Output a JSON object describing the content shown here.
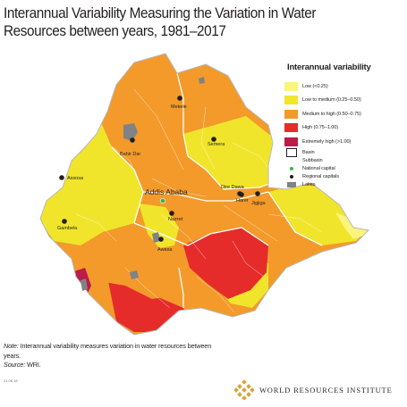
{
  "title": "Interannual Variability Measuring the Variation in Water Resources between years, 1981–2017",
  "legend": {
    "title": "Interannual variability",
    "classes": [
      {
        "label": "Low (<0.25)",
        "color": "#fbf47d"
      },
      {
        "label": "Low to medium (0.25–0.50)",
        "color": "#f0e52a"
      },
      {
        "label": "Medium to high (0.50–0.75)",
        "color": "#f39a2a"
      },
      {
        "label": "High (0.75–1.00)",
        "color": "#e62b2b"
      },
      {
        "label": "Extremely high (>1.00)",
        "color": "#bd1b4a"
      }
    ],
    "basin": "Basin",
    "subbasin": "Subbasin",
    "national_capital": "National capital",
    "regional_capitals": "Regional capitals",
    "lakes": "Lakes"
  },
  "cities": {
    "mekele": "Mekele",
    "bahir_dar": "Bahir Dar",
    "semera": "Semera",
    "assosa": "Assosa",
    "addis_ababa": "Addis Ababa",
    "dire_dawa": "Dire Dawa",
    "harer": "Harer",
    "jigjiga": "Jigjiga",
    "gambela": "Gambela",
    "nazret": "Nazret",
    "awasa": "Awasa"
  },
  "note": {
    "label": "Note:",
    "text": "Interannual variability measures variation in water resources between years.",
    "source_label": "Source:",
    "source": "WRI."
  },
  "code": "21.06.18",
  "footer": {
    "org": "WORLD RESOURCES INSTITUTE"
  }
}
